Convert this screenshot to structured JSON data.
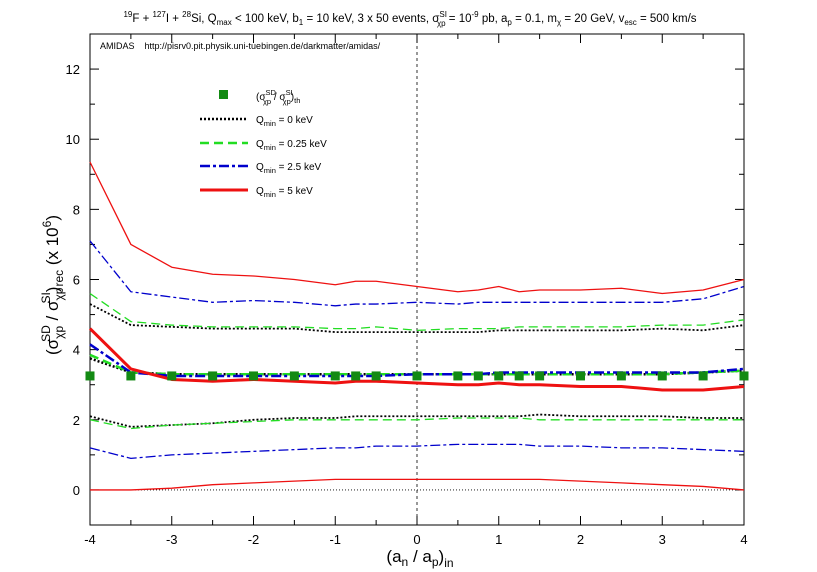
{
  "chart_data": {
    "type": "line",
    "title": "¹⁹F + ¹²⁷I + ²⁸Si, Q_max < 100 keV, b₁ = 10 keV, 3 x 50 events, σ_χp^SI = 10⁻⁹ pb, a_p = 0.1, m_χ = 20 GeV, v_esc = 500 km/s",
    "title_parts": {
      "t1": "19",
      "t2": "F + ",
      "t3": "127",
      "t4": "I + ",
      "t5": "28",
      "t6": "Si, Q",
      "t7": "max",
      "t8": " < 100 keV, b",
      "t9": "1",
      "t10": " = 10 keV, 3 x 50 events, σ",
      "t11": "SI",
      "t12": "χp",
      "t13": " = 10",
      "t14": "-9",
      "t15": " pb, a",
      "t16": "p",
      "t17": " = 0.1, m",
      "t18": "χ",
      "t19": " = 20 GeV, v",
      "t20": "esc",
      "t21": " = 500 km/s"
    },
    "annotation": "AMIDAS    http://pisrv0.pit.physik.uni-tuebingen.de/darkmatter/amidas/",
    "xlabel": "(a_n / a_p)_in",
    "xlabel_parts": {
      "p1": "(a",
      "p2": "n",
      "p3": " / a",
      "p4": "p",
      "p5": ")",
      "p6": "in"
    },
    "ylabel": "(σ_χp^SD / σ_χp^SI)_rec (x 10^6)",
    "ylabel_parts": {
      "p1": "(σ",
      "p2": "χp",
      "p3": "SD",
      "p4": " / σ",
      "p5": "χp",
      "p6": "SI",
      "p7": ")",
      "p8": "rec",
      "p9": " (x 10",
      "p10": "6",
      "p11": ")"
    },
    "xlim": [
      -4,
      4
    ],
    "ylim": [
      -1,
      13
    ],
    "xticks": [
      "-4",
      "-3",
      "-2",
      "-1",
      "0",
      "1",
      "2",
      "3",
      "4"
    ],
    "yticks": [
      "0",
      "2",
      "4",
      "6",
      "8",
      "10",
      "12"
    ],
    "grid": false,
    "legend_placement": "top-left",
    "legend": [
      {
        "key": "th",
        "l1": "(σ",
        "l2": "SD",
        "l3": "χp",
        "l4": " / σ",
        "l5": "SI",
        "l6": "χp",
        "l7": ")",
        "l8": "th",
        "color": "#138a13"
      },
      {
        "key": "q0",
        "l1": "Q",
        "l2": "min",
        "l3": " = 0 keV",
        "color": "#000000"
      },
      {
        "key": "q025",
        "l1": "Q",
        "l2": "min",
        "l3": " = 0.25 keV",
        "color": "#22dd22"
      },
      {
        "key": "q25",
        "l1": "Q",
        "l2": "min",
        "l3": " = 2.5 keV",
        "color": "#0000cc"
      },
      {
        "key": "q5",
        "l1": "Q",
        "l2": "min",
        "l3": " = 5 keV",
        "color": "#ee1111"
      }
    ],
    "x": [
      -4,
      -3.5,
      -3,
      -2.5,
      -2,
      -1.5,
      -1,
      -0.75,
      -0.5,
      0,
      0.5,
      0.75,
      1,
      1.25,
      1.5,
      2,
      2.5,
      3,
      3.5,
      4
    ],
    "theory_points": {
      "x": [
        -4,
        -3.5,
        -3,
        -2.5,
        -2,
        -1.5,
        -1,
        -0.75,
        -0.5,
        0,
        0.5,
        0.75,
        1,
        1.25,
        1.5,
        2,
        2.5,
        3,
        3.5,
        4
      ],
      "y": [
        3.25,
        3.25,
        3.25,
        3.25,
        3.25,
        3.25,
        3.25,
        3.25,
        3.25,
        3.25,
        3.25,
        3.25,
        3.25,
        3.25,
        3.25,
        3.25,
        3.25,
        3.25,
        3.25,
        3.25
      ]
    },
    "series": [
      {
        "key": "q0",
        "band": "upper",
        "values": [
          5.3,
          4.7,
          4.65,
          4.6,
          4.6,
          4.6,
          4.5,
          4.5,
          4.5,
          4.5,
          4.5,
          4.5,
          4.55,
          4.55,
          4.55,
          4.55,
          4.55,
          4.6,
          4.55,
          4.7
        ]
      },
      {
        "key": "q0",
        "band": "central",
        "values": [
          3.75,
          3.35,
          3.3,
          3.3,
          3.3,
          3.3,
          3.3,
          3.3,
          3.3,
          3.3,
          3.3,
          3.3,
          3.3,
          3.3,
          3.3,
          3.3,
          3.3,
          3.3,
          3.35,
          3.4
        ]
      },
      {
        "key": "q0",
        "band": "lower",
        "values": [
          2.1,
          1.8,
          1.85,
          1.9,
          2.0,
          2.05,
          2.05,
          2.1,
          2.1,
          2.1,
          2.1,
          2.1,
          2.1,
          2.1,
          2.15,
          2.1,
          2.1,
          2.1,
          2.05,
          2.05
        ]
      },
      {
        "key": "q025",
        "band": "upper",
        "values": [
          5.6,
          4.8,
          4.7,
          4.65,
          4.65,
          4.65,
          4.6,
          4.6,
          4.65,
          4.55,
          4.6,
          4.6,
          4.6,
          4.65,
          4.65,
          4.65,
          4.65,
          4.7,
          4.7,
          4.85
        ]
      },
      {
        "key": "q025",
        "band": "central",
        "values": [
          3.85,
          3.35,
          3.3,
          3.3,
          3.3,
          3.3,
          3.3,
          3.3,
          3.3,
          3.3,
          3.3,
          3.3,
          3.3,
          3.3,
          3.3,
          3.3,
          3.3,
          3.3,
          3.35,
          3.4
        ]
      },
      {
        "key": "q025",
        "band": "lower",
        "values": [
          2.0,
          1.75,
          1.85,
          1.9,
          1.95,
          2.0,
          2.0,
          2.0,
          2.0,
          2.0,
          2.05,
          2.05,
          2.05,
          2.05,
          2.0,
          2.0,
          2.0,
          2.0,
          2.0,
          2.0
        ]
      },
      {
        "key": "q25",
        "band": "upper",
        "values": [
          7.1,
          5.65,
          5.5,
          5.35,
          5.4,
          5.35,
          5.25,
          5.3,
          5.3,
          5.35,
          5.3,
          5.35,
          5.35,
          5.35,
          5.35,
          5.35,
          5.35,
          5.35,
          5.45,
          5.8
        ]
      },
      {
        "key": "q25",
        "band": "central",
        "values": [
          4.15,
          3.35,
          3.25,
          3.25,
          3.25,
          3.25,
          3.25,
          3.25,
          3.25,
          3.3,
          3.3,
          3.3,
          3.35,
          3.35,
          3.35,
          3.35,
          3.35,
          3.35,
          3.35,
          3.45
        ]
      },
      {
        "key": "q25",
        "band": "lower",
        "values": [
          1.2,
          0.9,
          1.0,
          1.05,
          1.1,
          1.15,
          1.2,
          1.2,
          1.25,
          1.25,
          1.3,
          1.3,
          1.3,
          1.3,
          1.25,
          1.25,
          1.2,
          1.2,
          1.15,
          1.1
        ]
      },
      {
        "key": "q5",
        "band": "upper",
        "values": [
          9.35,
          7.0,
          6.35,
          6.15,
          6.1,
          6.0,
          5.85,
          5.95,
          5.95,
          5.8,
          5.65,
          5.7,
          5.8,
          5.65,
          5.7,
          5.7,
          5.75,
          5.6,
          5.7,
          6.0
        ]
      },
      {
        "key": "q5",
        "band": "central",
        "values": [
          4.6,
          3.45,
          3.15,
          3.1,
          3.15,
          3.1,
          3.05,
          3.1,
          3.1,
          3.05,
          3.0,
          3.0,
          3.05,
          3.0,
          3.0,
          2.95,
          2.95,
          2.85,
          2.85,
          2.95
        ]
      },
      {
        "key": "q5",
        "band": "lower",
        "values": [
          0.0,
          0.0,
          0.05,
          0.15,
          0.2,
          0.25,
          0.3,
          0.3,
          0.3,
          0.3,
          0.3,
          0.3,
          0.3,
          0.3,
          0.3,
          0.25,
          0.2,
          0.15,
          0.1,
          0.0
        ]
      }
    ]
  }
}
